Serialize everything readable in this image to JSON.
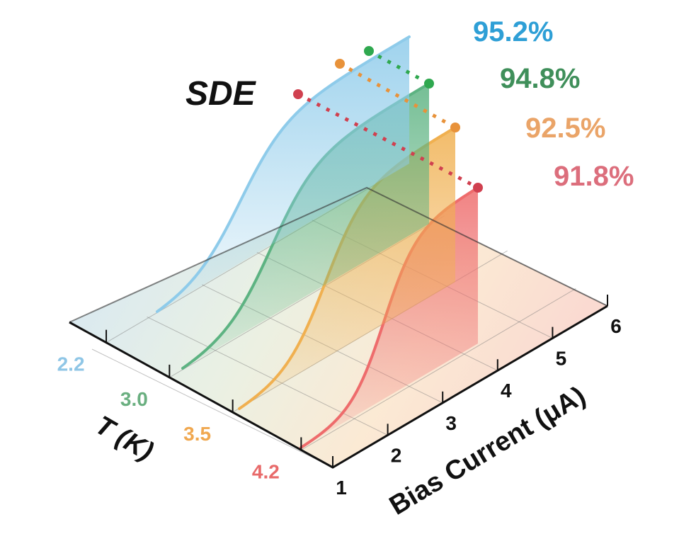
{
  "chart_data": {
    "type": "line",
    "title": "SDE",
    "xlabel": "Bias Current (μA)",
    "ylabel": "T (K)",
    "x_ticks": [
      "1",
      "2",
      "3",
      "4",
      "5",
      "6"
    ],
    "xlim": [
      1,
      6
    ],
    "y_ticks": [
      "2.2",
      "3.0",
      "3.5",
      "4.2"
    ],
    "series": [
      {
        "name": "2.2",
        "temperature_K": 2.2,
        "max_sde_label": "95.2%",
        "max_sde": 95.2,
        "color": "#8ecbea",
        "label_color": "#2e9fd6",
        "tick_color": "#8fc6e6"
      },
      {
        "name": "3.0",
        "temperature_K": 3.0,
        "max_sde_label": "94.8%",
        "max_sde": 94.8,
        "color": "#5db382",
        "label_color": "#3f8f5a",
        "tick_color": "#6aaf80"
      },
      {
        "name": "3.5",
        "temperature_K": 3.5,
        "max_sde_label": "92.5%",
        "max_sde": 92.5,
        "color": "#f0b050",
        "label_color": "#eaa468",
        "tick_color": "#f0a850"
      },
      {
        "name": "4.2",
        "temperature_K": 4.2,
        "max_sde_label": "91.8%",
        "max_sde": 91.8,
        "color": "#ee6c6c",
        "label_color": "#dc6e7c",
        "tick_color": "#e86a6a"
      }
    ],
    "marker_colors": {
      "3.0": "#2fa84f",
      "3.5": "#e8923a",
      "4.2": "#d0404f"
    },
    "grid": true
  }
}
